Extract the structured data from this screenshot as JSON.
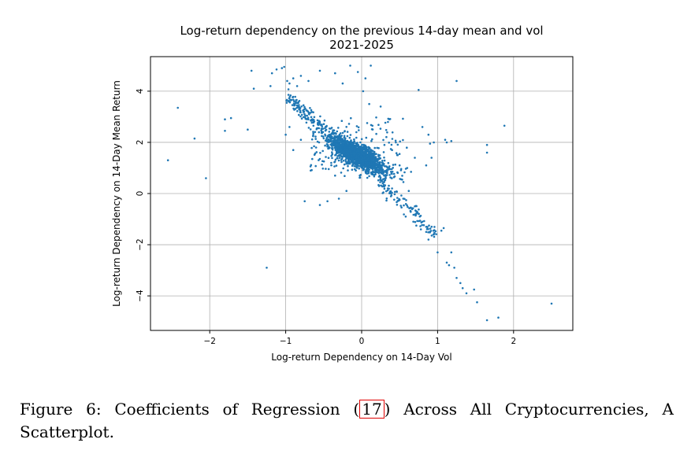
{
  "caption": {
    "prefix": "Figure 6: Coefficients of Regression (",
    "ref": "17",
    "suffix": ") Across All Cryptocurrencies, A Scatterplot."
  },
  "chart_data": {
    "type": "scatter",
    "title": "Log-return dependency on the previous 14-day mean and vol",
    "subtitle": "2021-2025",
    "xlabel": "Log-return Dependency on 14-Day Vol",
    "ylabel": "Log-return Dependency on 14-Day Mean Return",
    "xlim": [
      -2.78,
      2.78
    ],
    "ylim": [
      -5.35,
      5.35
    ],
    "xticks": [
      -2,
      -1,
      0,
      1,
      2
    ],
    "xtick_labels": [
      "−2",
      "−1",
      "0",
      "1",
      "2"
    ],
    "yticks": [
      4,
      2,
      0,
      -2,
      -4
    ],
    "ytick_labels": [
      "4",
      "2",
      "0",
      "−2",
      "−4"
    ],
    "grid": true,
    "marker_color": "#1f77b4",
    "points": [
      [
        -2.55,
        1.3
      ],
      [
        -2.42,
        3.35
      ],
      [
        -2.2,
        2.15
      ],
      [
        -2.05,
        0.6
      ],
      [
        -1.8,
        2.9
      ],
      [
        -1.72,
        2.95
      ],
      [
        -1.8,
        2.45
      ],
      [
        -1.5,
        2.5
      ],
      [
        -1.45,
        4.8
      ],
      [
        -1.42,
        4.1
      ],
      [
        -1.25,
        -2.9
      ],
      [
        -1.2,
        4.2
      ],
      [
        -1.18,
        4.7
      ],
      [
        -1.12,
        4.85
      ],
      [
        -1.05,
        4.9
      ],
      [
        -1.02,
        4.95
      ],
      [
        -0.98,
        4.4
      ],
      [
        -0.95,
        4.3
      ],
      [
        -0.9,
        4.5
      ],
      [
        -0.85,
        4.2
      ],
      [
        -0.8,
        4.6
      ],
      [
        -0.7,
        4.4
      ],
      [
        -0.55,
        4.8
      ],
      [
        -0.35,
        4.7
      ],
      [
        -0.25,
        4.3
      ],
      [
        -0.15,
        5.0
      ],
      [
        -0.05,
        4.75
      ],
      [
        0.05,
        4.5
      ],
      [
        0.12,
        5.0
      ],
      [
        0.02,
        4.0
      ],
      [
        0.1,
        3.5
      ],
      [
        0.25,
        3.4
      ],
      [
        -0.75,
        -0.3
      ],
      [
        -0.55,
        -0.45
      ],
      [
        -0.45,
        -0.3
      ],
      [
        -0.3,
        -0.2
      ],
      [
        -0.2,
        0.1
      ],
      [
        -0.95,
        2.6
      ],
      [
        -1.0,
        2.3
      ],
      [
        -0.9,
        1.7
      ],
      [
        -0.8,
        2.1
      ],
      [
        -0.65,
        1.35
      ],
      [
        -0.6,
        1.8
      ],
      [
        -0.4,
        1.2
      ],
      [
        -0.35,
        0.7
      ],
      [
        0.75,
        4.05
      ],
      [
        0.8,
        2.6
      ],
      [
        0.88,
        2.3
      ],
      [
        0.9,
        1.95
      ],
      [
        0.95,
        2.0
      ],
      [
        1.1,
        2.1
      ],
      [
        1.12,
        2.0
      ],
      [
        1.18,
        2.05
      ],
      [
        1.25,
        4.4
      ],
      [
        1.65,
        1.9
      ],
      [
        1.65,
        1.6
      ],
      [
        1.88,
        2.65
      ],
      [
        0.85,
        1.1
      ],
      [
        0.92,
        1.4
      ],
      [
        0.4,
        1.7
      ],
      [
        0.45,
        2.0
      ],
      [
        0.3,
        1.9
      ],
      [
        0.5,
        1.1
      ],
      [
        0.6,
        1.0
      ],
      [
        0.65,
        0.85
      ],
      [
        0.7,
        1.4
      ],
      [
        0.55,
        0.45
      ],
      [
        0.62,
        0.1
      ],
      [
        0.7,
        -0.5
      ],
      [
        0.75,
        -0.8
      ],
      [
        0.8,
        -1.1
      ],
      [
        0.85,
        -1.3
      ],
      [
        0.9,
        -1.5
      ],
      [
        0.95,
        -1.6
      ],
      [
        1.0,
        -2.3
      ],
      [
        1.05,
        -1.45
      ],
      [
        1.08,
        -1.35
      ],
      [
        1.12,
        -2.7
      ],
      [
        1.15,
        -2.8
      ],
      [
        1.18,
        -2.3
      ],
      [
        1.22,
        -2.9
      ],
      [
        1.25,
        -3.3
      ],
      [
        1.3,
        -3.5
      ],
      [
        1.33,
        -3.7
      ],
      [
        1.38,
        -3.9
      ],
      [
        1.48,
        -3.75
      ],
      [
        1.52,
        -4.25
      ],
      [
        1.65,
        -4.95
      ],
      [
        1.8,
        -4.85
      ],
      [
        2.5,
        -4.3
      ],
      [
        0.85,
        -1.5
      ],
      [
        0.88,
        -1.8
      ],
      [
        0.78,
        -1.4
      ],
      [
        0.72,
        -1.25
      ],
      [
        0.68,
        -1.1
      ],
      [
        0.58,
        -0.9
      ]
    ]
  }
}
